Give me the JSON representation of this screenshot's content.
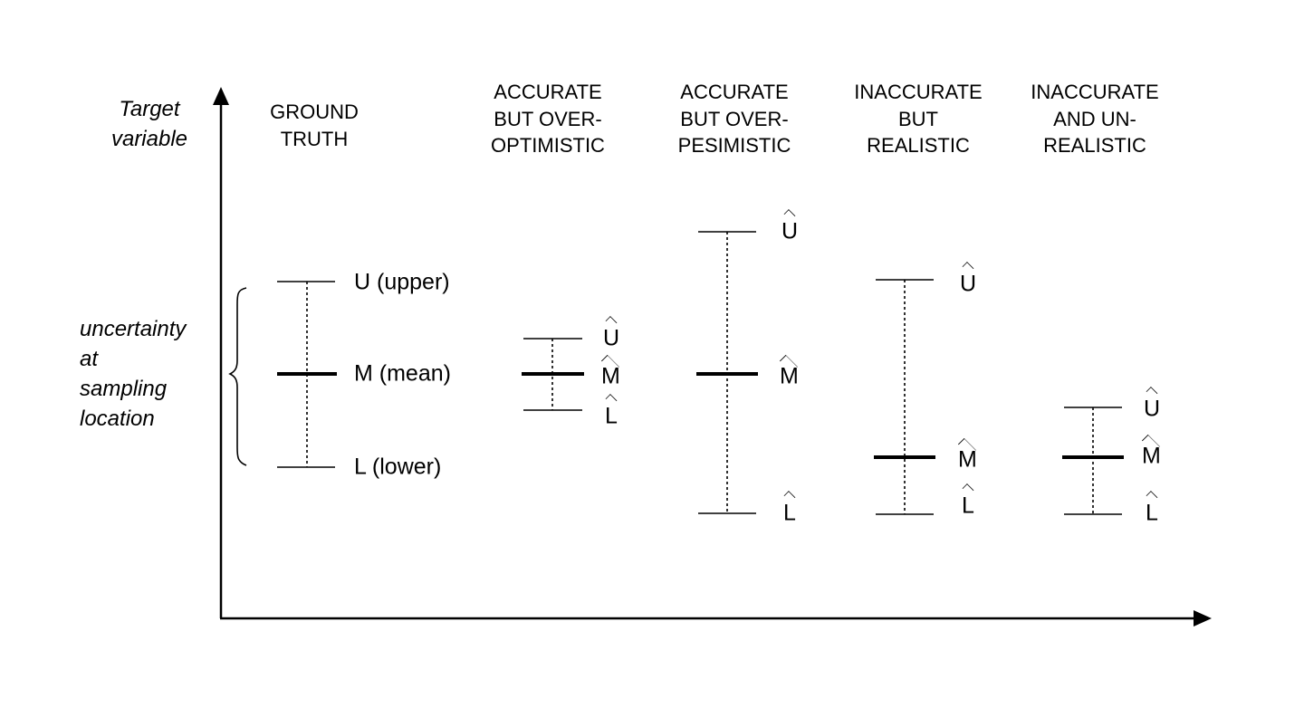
{
  "axis": {
    "y_label": "Target\nvariable"
  },
  "brace_label": "uncertainty\nat\nsampling\nlocation",
  "columns": [
    {
      "title": "GROUND\nTRUTH",
      "labels": {
        "upper": "U (upper)",
        "mean": "M (mean)",
        "lower": "L (lower)"
      }
    },
    {
      "title": "ACCURATE\nBUT OVER-\nOPTIMISTIC",
      "labels": {
        "upper": "U",
        "mean": "M",
        "lower": "L"
      }
    },
    {
      "title": "ACCURATE\nBUT OVER-\nPESIMISTIC",
      "labels": {
        "upper": "U",
        "mean": "M",
        "lower": "L"
      }
    },
    {
      "title": "INACCURATE\nBUT\nREALISTIC",
      "labels": {
        "upper": "U",
        "mean": "M",
        "lower": "L"
      }
    },
    {
      "title": "INACCURATE\nAND UN-\nREALISTIC",
      "labels": {
        "upper": "U",
        "mean": "M",
        "lower": "L"
      }
    }
  ]
}
